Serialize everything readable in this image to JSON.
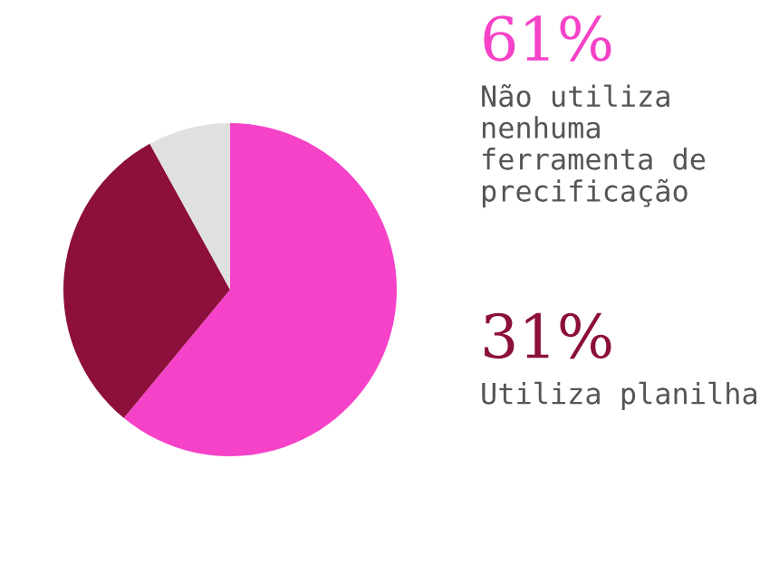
{
  "chart_data": {
    "type": "pie",
    "categories": [
      null,
      null,
      null
    ],
    "values": [
      61,
      31,
      8
    ],
    "colors": [
      "#f542c8",
      "#8c0f3c",
      "#e0e0e0"
    ],
    "annotations": [
      "61%",
      "Não utiliza nenhuma ferramenta de precificação",
      "31%",
      "Utiliza planilha"
    ],
    "legend": false
  }
}
